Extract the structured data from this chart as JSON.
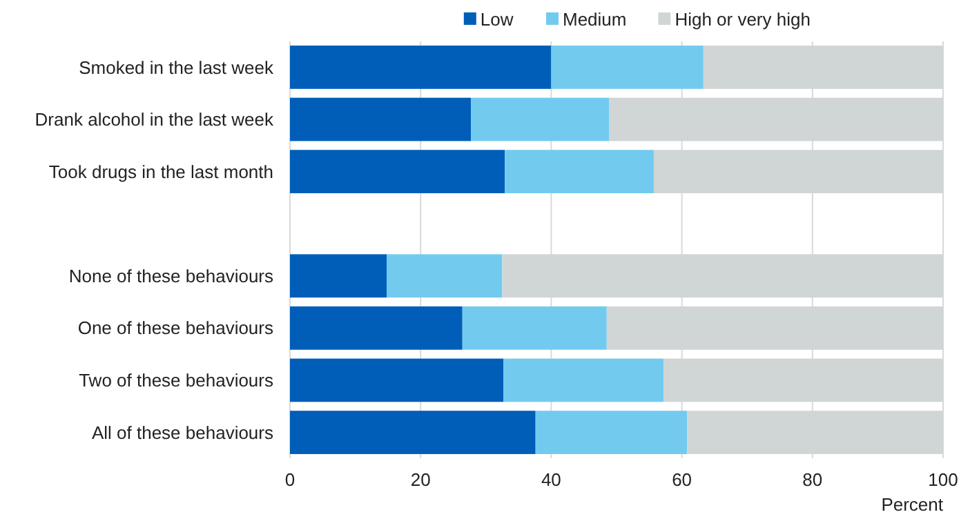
{
  "chart_data": {
    "type": "bar",
    "orientation": "horizontal",
    "stacked": true,
    "xlabel": "Percent",
    "categories": [
      "Smoked in the last week",
      "Drank alcohol in the last week",
      "Took drugs in the last month",
      null,
      "None of these behaviours",
      "One of these behaviours",
      "Two of these behaviours",
      "All of these behaviours"
    ],
    "series": [
      {
        "name": "Low",
        "color": "#005eb8",
        "values": [
          40,
          27.7,
          32.9,
          null,
          14.8,
          26.4,
          32.7,
          37.6
        ]
      },
      {
        "name": "Medium",
        "color": "#72cbef",
        "values": [
          23.3,
          21.2,
          22.8,
          null,
          17.7,
          22.1,
          24.5,
          23.2
        ]
      },
      {
        "name": "High or very high",
        "color": "#d0d5d6",
        "values": [
          36.7,
          51.1,
          44.3,
          null,
          67.5,
          51.5,
          42.8,
          39.2
        ]
      }
    ],
    "xlim": [
      0,
      100
    ],
    "xticks": [
      0,
      20,
      40,
      60,
      80,
      100
    ],
    "grid": "x",
    "legend": "top"
  }
}
